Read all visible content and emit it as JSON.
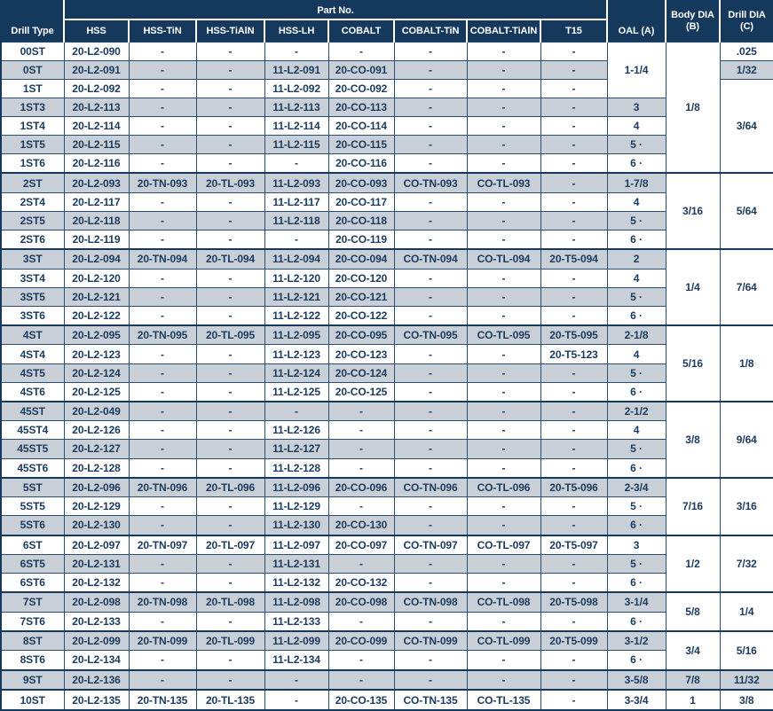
{
  "colors": {
    "header_navy": "#15395d",
    "stripe_gray": "#c8cfd7",
    "text_navy": "#1a3a5e",
    "grid_line": "#2b4e72"
  },
  "table": {
    "header": {
      "drill_type": "Drill Type",
      "part_no": "Part No.",
      "part_columns": [
        "HSS",
        "HSS-TiN",
        "HSS-TiAlN",
        "HSS-LH",
        "COBALT",
        "COBALT-TiN",
        "COBALT-TiAlN",
        "T15"
      ],
      "oal": "OAL (A)",
      "body_dia_line1": "Body DIA",
      "body_dia_line2": "(B)",
      "drill_dia_line1": "Drill DIA",
      "drill_dia_line2": "(C)"
    },
    "rows": [
      {
        "t": "00ST",
        "p": [
          "20-L2-090",
          "-",
          "-",
          "-",
          "-",
          "-",
          "-",
          "-"
        ],
        "oal": {
          "v": "1-1/4",
          "s": 3
        },
        "body": {
          "v": "1/8",
          "s": 7
        },
        "dia": {
          "v": ".025",
          "s": 1
        }
      },
      {
        "t": "0ST",
        "p": [
          "20-L2-091",
          "-",
          "-",
          "11-L2-091",
          "20-CO-091",
          "-",
          "-",
          "-"
        ],
        "dia": {
          "v": "1/32",
          "s": 1
        }
      },
      {
        "t": "1ST",
        "p": [
          "20-L2-092",
          "-",
          "-",
          "11-L2-092",
          "20-CO-092",
          "-",
          "-",
          "-"
        ],
        "dia": {
          "v": "3/64",
          "s": 5
        }
      },
      {
        "t": "1ST3",
        "p": [
          "20-L2-113",
          "-",
          "-",
          "11-L2-113",
          "20-CO-113",
          "-",
          "-",
          "-"
        ],
        "oal": {
          "v": "3",
          "s": 1
        }
      },
      {
        "t": "1ST4",
        "p": [
          "20-L2-114",
          "-",
          "-",
          "11-L2-114",
          "20-CO-114",
          "-",
          "-",
          "-"
        ],
        "oal": {
          "v": "4",
          "s": 1
        }
      },
      {
        "t": "1ST5",
        "p": [
          "20-L2-115",
          "-",
          "-",
          "11-L2-115",
          "20-CO-115",
          "-",
          "-",
          "-"
        ],
        "oal": {
          "v": "5 ·",
          "s": 1
        }
      },
      {
        "t": "1ST6",
        "p": [
          "20-L2-116",
          "-",
          "-",
          "-",
          "20-CO-116",
          "-",
          "-",
          "-"
        ],
        "oal": {
          "v": "6 ·",
          "s": 1
        }
      },
      {
        "t": "2ST",
        "g": true,
        "p": [
          "20-L2-093",
          "20-TN-093",
          "20-TL-093",
          "11-L2-093",
          "20-CO-093",
          "CO-TN-093",
          "CO-TL-093",
          "-"
        ],
        "oal": {
          "v": "1-7/8",
          "s": 1
        },
        "body": {
          "v": "3/16",
          "s": 4
        },
        "dia": {
          "v": "5/64",
          "s": 4
        }
      },
      {
        "t": "2ST4",
        "p": [
          "20-L2-117",
          "-",
          "-",
          "11-L2-117",
          "20-CO-117",
          "-",
          "-",
          "-"
        ],
        "oal": {
          "v": "4",
          "s": 1
        }
      },
      {
        "t": "2ST5",
        "p": [
          "20-L2-118",
          "-",
          "-",
          "11-L2-118",
          "20-CO-118",
          "-",
          "-",
          "-"
        ],
        "oal": {
          "v": "5 ·",
          "s": 1
        }
      },
      {
        "t": "2ST6",
        "p": [
          "20-L2-119",
          "-",
          "-",
          "-",
          "20-CO-119",
          "-",
          "-",
          "-"
        ],
        "oal": {
          "v": "6 ·",
          "s": 1
        }
      },
      {
        "t": "3ST",
        "g": true,
        "p": [
          "20-L2-094",
          "20-TN-094",
          "20-TL-094",
          "11-L2-094",
          "20-CO-094",
          "CO-TN-094",
          "CO-TL-094",
          "20-T5-094"
        ],
        "oal": {
          "v": "2",
          "s": 1
        },
        "body": {
          "v": "1/4",
          "s": 4
        },
        "dia": {
          "v": "7/64",
          "s": 4
        }
      },
      {
        "t": "3ST4",
        "p": [
          "20-L2-120",
          "-",
          "-",
          "11-L2-120",
          "20-CO-120",
          "-",
          "-",
          "-"
        ],
        "oal": {
          "v": "4",
          "s": 1
        }
      },
      {
        "t": "3ST5",
        "p": [
          "20-L2-121",
          "-",
          "-",
          "11-L2-121",
          "20-CO-121",
          "-",
          "-",
          "-"
        ],
        "oal": {
          "v": "5 ·",
          "s": 1
        }
      },
      {
        "t": "3ST6",
        "p": [
          "20-L2-122",
          "-",
          "-",
          "11-L2-122",
          "20-CO-122",
          "-",
          "-",
          "-"
        ],
        "oal": {
          "v": "6 ·",
          "s": 1
        }
      },
      {
        "t": "4ST",
        "g": true,
        "p": [
          "20-L2-095",
          "20-TN-095",
          "20-TL-095",
          "11-L2-095",
          "20-CO-095",
          "CO-TN-095",
          "CO-TL-095",
          "20-T5-095"
        ],
        "oal": {
          "v": "2-1/8",
          "s": 1
        },
        "body": {
          "v": "5/16",
          "s": 4
        },
        "dia": {
          "v": "1/8",
          "s": 4
        }
      },
      {
        "t": "4ST4",
        "p": [
          "20-L2-123",
          "-",
          "-",
          "11-L2-123",
          "20-CO-123",
          "-",
          "-",
          "20-T5-123"
        ],
        "oal": {
          "v": "4",
          "s": 1
        }
      },
      {
        "t": "4ST5",
        "p": [
          "20-L2-124",
          "-",
          "-",
          "11-L2-124",
          "20-CO-124",
          "-",
          "-",
          "-"
        ],
        "oal": {
          "v": "5 ·",
          "s": 1
        }
      },
      {
        "t": "4ST6",
        "p": [
          "20-L2-125",
          "-",
          "-",
          "11-L2-125",
          "20-CO-125",
          "-",
          "-",
          "-"
        ],
        "oal": {
          "v": "6 ·",
          "s": 1
        }
      },
      {
        "t": "45ST",
        "g": true,
        "p": [
          "20-L2-049",
          "-",
          "-",
          "-",
          "-",
          "-",
          "-",
          "-"
        ],
        "oal": {
          "v": "2-1/2",
          "s": 1
        },
        "body": {
          "v": "3/8",
          "s": 4
        },
        "dia": {
          "v": "9/64",
          "s": 4
        }
      },
      {
        "t": "45ST4",
        "p": [
          "20-L2-126",
          "-",
          "-",
          "11-L2-126",
          "-",
          "-",
          "-",
          "-"
        ],
        "oal": {
          "v": "4",
          "s": 1
        }
      },
      {
        "t": "45ST5",
        "p": [
          "20-L2-127",
          "-",
          "-",
          "11-L2-127",
          "-",
          "-",
          "-",
          "-"
        ],
        "oal": {
          "v": "5 ·",
          "s": 1
        }
      },
      {
        "t": "45ST6",
        "p": [
          "20-L2-128",
          "-",
          "-",
          "11-L2-128",
          "-",
          "-",
          "-",
          "-"
        ],
        "oal": {
          "v": "6 ·",
          "s": 1
        }
      },
      {
        "t": "5ST",
        "g": true,
        "p": [
          "20-L2-096",
          "20-TN-096",
          "20-TL-096",
          "11-L2-096",
          "20-CO-096",
          "CO-TN-096",
          "CO-TL-096",
          "20-T5-096"
        ],
        "oal": {
          "v": "2-3/4",
          "s": 1
        },
        "body": {
          "v": "7/16",
          "s": 3
        },
        "dia": {
          "v": "3/16",
          "s": 3
        }
      },
      {
        "t": "5ST5",
        "p": [
          "20-L2-129",
          "-",
          "-",
          "11-L2-129",
          "-",
          "-",
          "-",
          "-"
        ],
        "oal": {
          "v": "5 ·",
          "s": 1
        }
      },
      {
        "t": "5ST6",
        "p": [
          "20-L2-130",
          "-",
          "-",
          "11-L2-130",
          "20-CO-130",
          "-",
          "-",
          "-"
        ],
        "oal": {
          "v": "6 ·",
          "s": 1
        }
      },
      {
        "t": "6ST",
        "g": true,
        "p": [
          "20-L2-097",
          "20-TN-097",
          "20-TL-097",
          "11-L2-097",
          "20-CO-097",
          "CO-TN-097",
          "CO-TL-097",
          "20-T5-097"
        ],
        "oal": {
          "v": "3",
          "s": 1
        },
        "body": {
          "v": "1/2",
          "s": 3
        },
        "dia": {
          "v": "7/32",
          "s": 3
        }
      },
      {
        "t": "6ST5",
        "p": [
          "20-L2-131",
          "-",
          "-",
          "11-L2-131",
          "-",
          "-",
          "-",
          "-"
        ],
        "oal": {
          "v": "5 ·",
          "s": 1
        }
      },
      {
        "t": "6ST6",
        "p": [
          "20-L2-132",
          "-",
          "-",
          "11-L2-132",
          "20-CO-132",
          "-",
          "-",
          "-"
        ],
        "oal": {
          "v": "6 ·",
          "s": 1
        }
      },
      {
        "t": "7ST",
        "g": true,
        "p": [
          "20-L2-098",
          "20-TN-098",
          "20-TL-098",
          "11-L2-098",
          "20-CO-098",
          "CO-TN-098",
          "CO-TL-098",
          "20-T5-098"
        ],
        "oal": {
          "v": "3-1/4",
          "s": 1
        },
        "body": {
          "v": "5/8",
          "s": 2
        },
        "dia": {
          "v": "1/4",
          "s": 2
        }
      },
      {
        "t": "7ST6",
        "p": [
          "20-L2-133",
          "-",
          "-",
          "11-L2-133",
          "-",
          "-",
          "-",
          "-"
        ],
        "oal": {
          "v": "6 ·",
          "s": 1
        }
      },
      {
        "t": "8ST",
        "g": true,
        "p": [
          "20-L2-099",
          "20-TN-099",
          "20-TL-099",
          "11-L2-099",
          "20-CO-099",
          "CO-TN-099",
          "CO-TL-099",
          "20-T5-099"
        ],
        "oal": {
          "v": "3-1/2",
          "s": 1
        },
        "body": {
          "v": "3/4",
          "s": 2
        },
        "dia": {
          "v": "5/16",
          "s": 2
        }
      },
      {
        "t": "8ST6",
        "p": [
          "20-L2-134",
          "-",
          "-",
          "11-L2-134",
          "-",
          "-",
          "-",
          "-"
        ],
        "oal": {
          "v": "6 ·",
          "s": 1
        }
      },
      {
        "t": "9ST",
        "g": true,
        "p": [
          "20-L2-136",
          "-",
          "-",
          "-",
          "-",
          "-",
          "-",
          "-"
        ],
        "oal": {
          "v": "3-5/8",
          "s": 1
        },
        "body": {
          "v": "7/8",
          "s": 1
        },
        "dia": {
          "v": "11/32",
          "s": 1
        }
      },
      {
        "t": "10ST",
        "g": true,
        "p": [
          "20-L2-135",
          "20-TN-135",
          "20-TL-135",
          "-",
          "20-CO-135",
          "CO-TN-135",
          "CO-TL-135",
          "-"
        ],
        "oal": {
          "v": "3-3/4",
          "s": 1
        },
        "body": {
          "v": "1",
          "s": 1
        },
        "dia": {
          "v": "3/8",
          "s": 1
        }
      }
    ]
  }
}
